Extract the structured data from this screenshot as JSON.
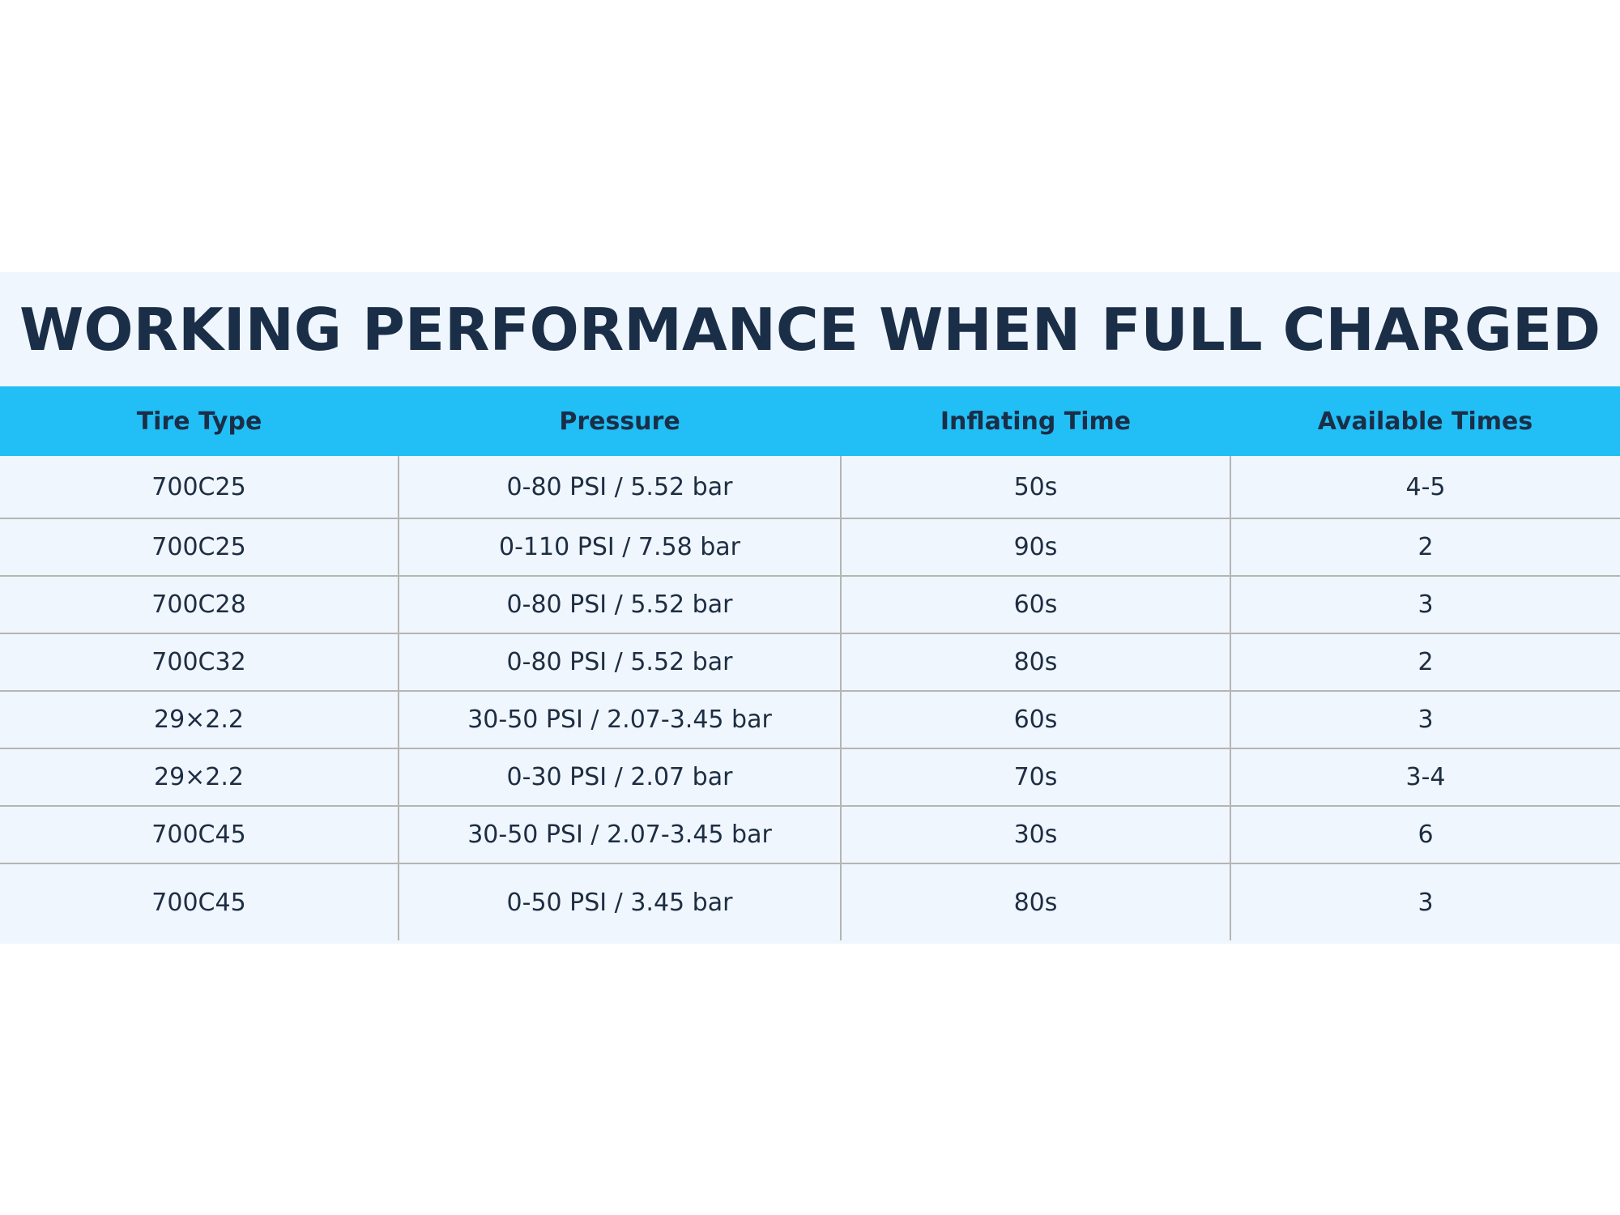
{
  "title": "WORKING PERFORMANCE WHEN FULL CHARGED",
  "colors": {
    "panel_background": "#eff6fd",
    "header_background": "#21bff6",
    "text": "#1b2e47",
    "grid_line": "#b5b5b5"
  },
  "table": {
    "headers": [
      "Tire Type",
      "Pressure",
      "Inflating Time",
      "Available Times"
    ],
    "rows": [
      [
        "700C25",
        "0-80 PSI / 5.52 bar",
        "50s",
        "4-5"
      ],
      [
        "700C25",
        "0-110 PSI / 7.58 bar",
        "90s",
        "2"
      ],
      [
        "700C28",
        "0-80 PSI / 5.52 bar",
        "60s",
        "3"
      ],
      [
        "700C32",
        "0-80 PSI / 5.52 bar",
        "80s",
        "2"
      ],
      [
        "29×2.2",
        "30-50 PSI / 2.07-3.45 bar",
        "60s",
        "3"
      ],
      [
        "29×2.2",
        "0-30 PSI / 2.07 bar",
        "70s",
        "3-4"
      ],
      [
        "700C45",
        "30-50 PSI / 2.07-3.45 bar",
        "30s",
        "6"
      ],
      [
        "700C45",
        "0-50 PSI / 3.45 bar",
        "80s",
        "3"
      ]
    ]
  }
}
